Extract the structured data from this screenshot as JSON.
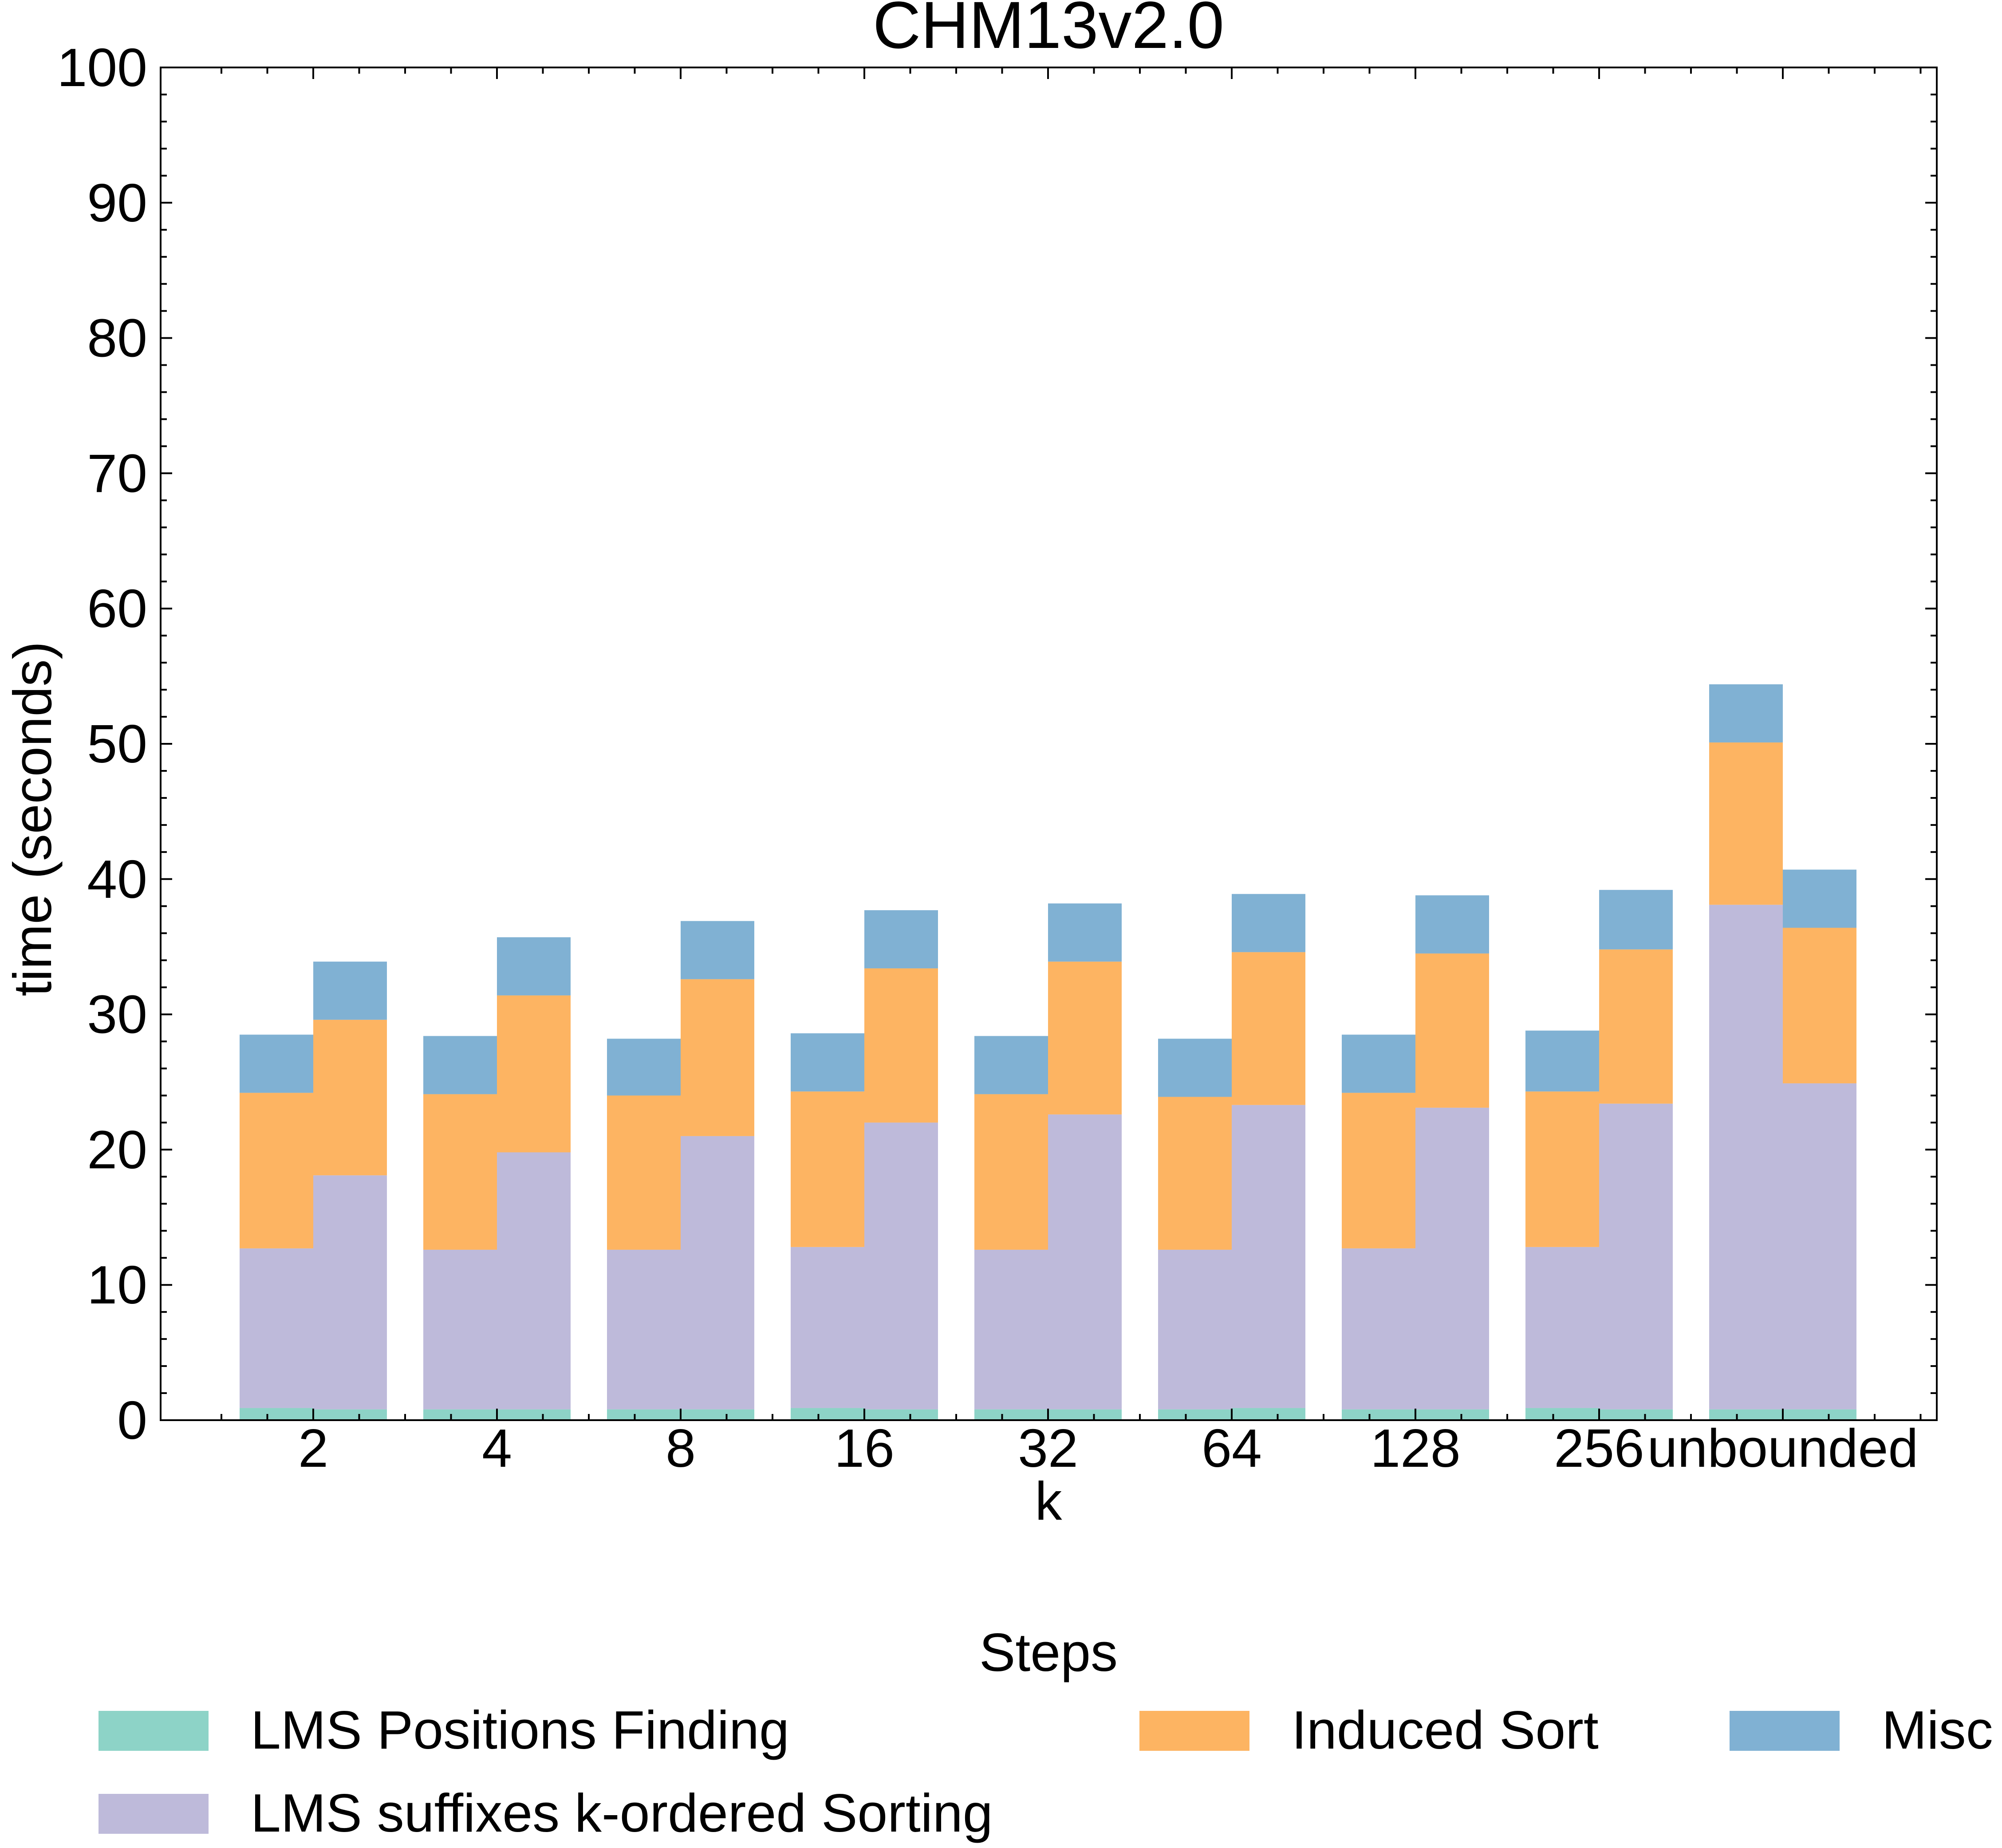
{
  "chart_data": {
    "type": "bar",
    "stacked": true,
    "grouped": true,
    "title": "CHM13v2.0",
    "xlabel": "k",
    "ylabel": "time (seconds)",
    "ylim": [
      0,
      100
    ],
    "yticks": [
      "0",
      "10",
      "20",
      "30",
      "40",
      "50",
      "60",
      "70",
      "80",
      "90",
      "100"
    ],
    "categories": [
      "2",
      "4",
      "8",
      "16",
      "32",
      "64",
      "128",
      "256",
      "unbounded"
    ],
    "legend": {
      "title": "Steps",
      "placement": "bottom",
      "entries": [
        "LMS Positions Finding",
        "LMS suffixes k-ordered Sorting",
        "Induced Sort",
        "Misc"
      ]
    },
    "groups": [
      {
        "name": "left",
        "series": [
          {
            "name": "LMS Positions Finding",
            "color": "#8dd3c7",
            "values": [
              0.9,
              0.8,
              0.8,
              0.9,
              0.8,
              0.8,
              0.8,
              0.9,
              0.8
            ]
          },
          {
            "name": "LMS suffixes k-ordered Sorting",
            "color": "#bebada",
            "values": [
              11.8,
              11.8,
              11.8,
              11.9,
              11.8,
              11.8,
              11.9,
              11.9,
              37.3
            ]
          },
          {
            "name": "Induced Sort",
            "color": "#fdb462",
            "values": [
              11.5,
              11.5,
              11.4,
              11.5,
              11.5,
              11.3,
              11.5,
              11.5,
              12.0
            ]
          },
          {
            "name": "Misc",
            "color": "#80b1d3",
            "values": [
              4.3,
              4.3,
              4.2,
              4.3,
              4.3,
              4.3,
              4.3,
              4.5,
              4.3
            ]
          }
        ]
      },
      {
        "name": "right",
        "series": [
          {
            "name": "LMS Positions Finding",
            "color": "#8dd3c7",
            "values": [
              0.8,
              0.8,
              0.8,
              0.8,
              0.8,
              0.9,
              0.8,
              0.8,
              0.8
            ]
          },
          {
            "name": "LMS suffixes k-ordered Sorting",
            "color": "#bebada",
            "values": [
              17.3,
              19.0,
              20.2,
              21.2,
              21.8,
              22.4,
              22.3,
              22.6,
              24.1
            ]
          },
          {
            "name": "Induced Sort",
            "color": "#fdb462",
            "values": [
              11.5,
              11.6,
              11.6,
              11.4,
              11.3,
              11.3,
              11.4,
              11.4,
              11.5
            ]
          },
          {
            "name": "Misc",
            "color": "#80b1d3",
            "values": [
              4.3,
              4.3,
              4.3,
              4.3,
              4.3,
              4.3,
              4.3,
              4.4,
              4.3
            ]
          }
        ]
      }
    ]
  }
}
